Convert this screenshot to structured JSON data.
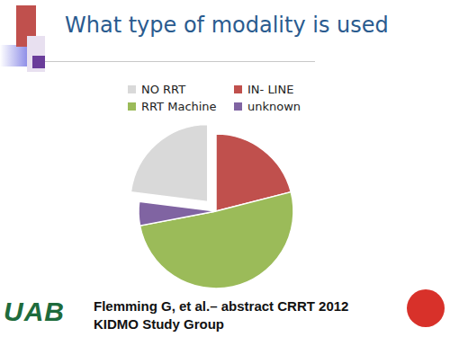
{
  "chart_data": {
    "type": "pie",
    "title": "What type of modality is used",
    "categories": [
      "NO RRT",
      "IN- LINE",
      "RRT Machine",
      "unknown"
    ],
    "values": [
      23,
      21,
      51,
      5
    ],
    "colors": [
      "#d9d9d9",
      "#c0504d",
      "#9bbb59",
      "#8064a2"
    ],
    "legend": "top",
    "annotations": [
      "Flemming G, et al.– abstract CRRT 2012",
      "KIDMO Study Group",
      "UAB"
    ]
  }
}
